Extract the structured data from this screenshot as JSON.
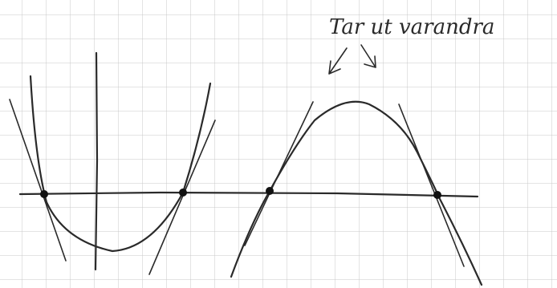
{
  "annotation": {
    "text": "Tar ut varandra"
  }
}
